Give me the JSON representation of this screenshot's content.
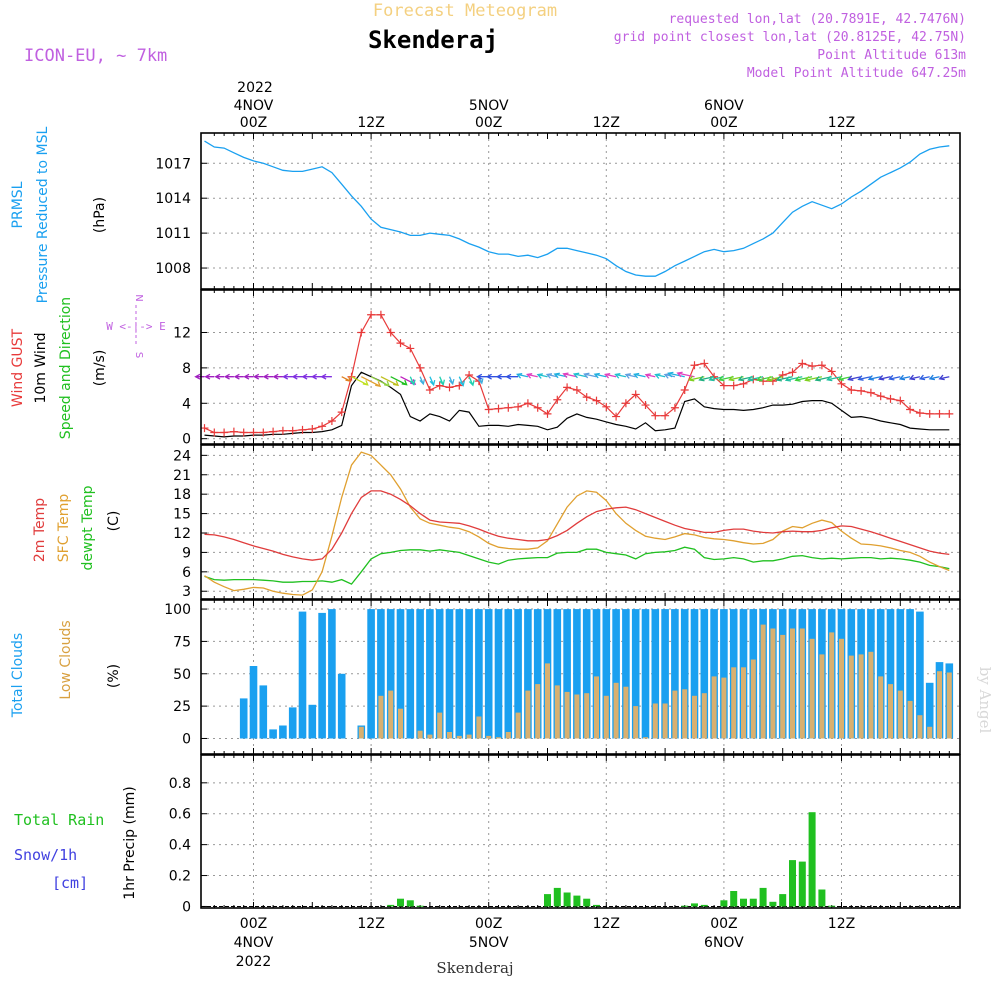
{
  "header": {
    "title": "Forecast Meteogram",
    "location": "Skenderaj",
    "model": "ICON-EU, ~ 7km",
    "requested": "requested lon,lat (20.7891E, 42.7476N)",
    "gridpoint": "grid point closest lon,lat (20.8125E, 42.75N)",
    "point_alt": "Point Altitude 613m",
    "model_alt": "Model Point Altitude 647.25m",
    "credit": "by Angel",
    "footer": "Skenderaj"
  },
  "colors": {
    "pressure": "#1aa0f0",
    "gust": "#e83a3a",
    "wind": "#000000",
    "temp": "#e03c3c",
    "sfc": "#e0a030",
    "dewpt": "#20c020",
    "total_cloud": "#1aa0f0",
    "low_cloud": "#d8b070",
    "rain": "#20c020",
    "snow": "#4040e0",
    "magenta": "#c060e0"
  },
  "x_axis": {
    "top_year": "2022",
    "top": [
      {
        "h": 0,
        "day": "4NOV",
        "hour": "00Z"
      },
      {
        "h": 12,
        "day": "",
        "hour": "12Z"
      },
      {
        "h": 24,
        "day": "5NOV",
        "hour": "00Z"
      },
      {
        "h": 36,
        "day": "",
        "hour": "12Z"
      },
      {
        "h": 48,
        "day": "6NOV",
        "hour": "00Z"
      },
      {
        "h": 60,
        "day": "",
        "hour": "12Z"
      }
    ],
    "bottom": [
      {
        "h": 0,
        "hour": "00Z",
        "day": "4NOV",
        "year": "2022"
      },
      {
        "h": 12,
        "hour": "12Z",
        "day": "",
        "year": ""
      },
      {
        "h": 24,
        "hour": "00Z",
        "day": "5NOV",
        "year": ""
      },
      {
        "h": 36,
        "hour": "12Z",
        "day": "",
        "year": ""
      },
      {
        "h": 48,
        "hour": "00Z",
        "day": "6NOV",
        "year": ""
      },
      {
        "h": 60,
        "hour": "12Z",
        "day": "",
        "year": ""
      }
    ]
  },
  "labels": {
    "p1_a": "PRMSL",
    "p1_b": "Pressure Reduced to MSL",
    "p1_unit": "(hPa)",
    "p2_a": "Wind GUST",
    "p2_b": "10m Wind",
    "p2_c": "Speed and Direction",
    "p2_unit": "(m/s)",
    "compass_n": "N",
    "compass_s": "S",
    "compass_we": "W <-|-> E",
    "p3_a": "2m Temp",
    "p3_b": "SFC Temp",
    "p3_c": "dewpt Temp",
    "p3_unit": "(C)",
    "p4_a": "Total Clouds",
    "p4_b": "Low Clouds",
    "p4_unit": "(%)",
    "p5_a": "Total  Rain",
    "p5_b": "Snow/1h",
    "p5_c": "[cm]",
    "p5_unit": "1hr Precip (mm)"
  },
  "chart_data": [
    {
      "type": "line",
      "name": "pressure",
      "ylim": [
        1006.2,
        1019.6
      ],
      "yticks": [
        1008,
        1011,
        1014,
        1017
      ],
      "x_hours": [
        -5,
        -4,
        -3,
        -2,
        -1,
        0,
        1,
        2,
        3,
        4,
        5,
        6,
        7,
        8,
        9,
        10,
        11,
        12,
        13,
        14,
        15,
        16,
        17,
        18,
        19,
        20,
        21,
        22,
        23,
        24,
        25,
        26,
        27,
        28,
        29,
        30,
        31,
        32,
        33,
        34,
        35,
        36,
        37,
        38,
        39,
        40,
        41,
        42,
        43,
        44,
        45,
        46,
        47,
        48,
        49,
        50,
        51,
        52,
        53,
        54,
        55,
        56,
        57,
        58,
        59,
        60,
        61,
        62,
        63,
        64,
        65,
        66,
        67,
        68,
        69,
        70,
        71
      ],
      "values": [
        1018.9,
        1018.4,
        1018.3,
        1017.9,
        1017.5,
        1017.2,
        1017.0,
        1016.7,
        1016.4,
        1016.3,
        1016.3,
        1016.5,
        1016.7,
        1016.2,
        1015.2,
        1014.2,
        1013.3,
        1012.2,
        1011.5,
        1011.3,
        1011.1,
        1010.8,
        1010.8,
        1011.0,
        1010.9,
        1010.8,
        1010.5,
        1010.1,
        1009.8,
        1009.4,
        1009.2,
        1009.2,
        1009.0,
        1009.1,
        1008.9,
        1009.2,
        1009.7,
        1009.7,
        1009.5,
        1009.3,
        1009.1,
        1008.8,
        1008.2,
        1007.7,
        1007.4,
        1007.3,
        1007.3,
        1007.7,
        1008.2,
        1008.6,
        1009.0,
        1009.4,
        1009.6,
        1009.4,
        1009.5,
        1009.7,
        1010.1,
        1010.5,
        1011.0,
        1011.9,
        1012.8,
        1013.3,
        1013.7,
        1013.4,
        1013.1,
        1013.5,
        1014.1,
        1014.6,
        1015.2,
        1015.8,
        1016.2,
        1016.6,
        1017.1,
        1017.8,
        1018.2,
        1018.4,
        1018.5
      ]
    },
    {
      "type": "line",
      "name": "wind",
      "ylim": [
        -0.6,
        16.8
      ],
      "yticks": [
        0,
        4,
        8,
        12
      ],
      "x_hours": [
        -5,
        -4,
        -3,
        -2,
        -1,
        0,
        1,
        2,
        3,
        4,
        5,
        6,
        7,
        8,
        9,
        10,
        11,
        12,
        13,
        14,
        15,
        16,
        17,
        18,
        19,
        20,
        21,
        22,
        23,
        24,
        25,
        26,
        27,
        28,
        29,
        30,
        31,
        32,
        33,
        34,
        35,
        36,
        37,
        38,
        39,
        40,
        41,
        42,
        43,
        44,
        45,
        46,
        47,
        48,
        49,
        50,
        51,
        52,
        53,
        54,
        55,
        56,
        57,
        58,
        59,
        60,
        61,
        62,
        63,
        64,
        65,
        66,
        67,
        68,
        69,
        70,
        71
      ],
      "gust": [
        1.2,
        0.7,
        0.7,
        0.8,
        0.7,
        0.7,
        0.7,
        0.8,
        0.9,
        0.9,
        1.0,
        1.1,
        1.4,
        2.0,
        3.0,
        7.0,
        12.0,
        14.0,
        14.0,
        12.0,
        10.8,
        10.2,
        8.0,
        5.5,
        6.0,
        5.8,
        6.0,
        7.2,
        6.5,
        3.3,
        3.4,
        3.5,
        3.6,
        4.0,
        3.5,
        2.8,
        4.4,
        5.8,
        5.5,
        4.7,
        4.3,
        3.6,
        2.5,
        4.0,
        5.0,
        3.8,
        2.6,
        2.6,
        3.5,
        5.5,
        8.3,
        8.5,
        7.0,
        6.0,
        6.0,
        6.2,
        6.7,
        6.5,
        6.5,
        7.2,
        7.5,
        8.5,
        8.2,
        8.3,
        7.6,
        6.2,
        5.5,
        5.4,
        5.2,
        4.8,
        4.5,
        4.3,
        3.3,
        2.9,
        2.8,
        2.8,
        2.8
      ],
      "speed": [
        0.4,
        0.3,
        0.2,
        0.3,
        0.3,
        0.4,
        0.4,
        0.5,
        0.5,
        0.6,
        0.7,
        0.7,
        0.8,
        1.0,
        1.5,
        6.0,
        7.5,
        7.0,
        6.5,
        5.8,
        5.0,
        2.5,
        2.0,
        2.8,
        2.5,
        2.0,
        3.2,
        3.0,
        1.4,
        1.5,
        1.5,
        1.4,
        1.6,
        1.5,
        1.4,
        1.0,
        1.3,
        2.3,
        2.8,
        2.4,
        2.2,
        1.9,
        1.6,
        1.4,
        1.1,
        1.8,
        0.9,
        1.0,
        1.2,
        4.2,
        4.5,
        3.6,
        3.4,
        3.3,
        3.3,
        3.2,
        3.3,
        3.5,
        3.8,
        3.8,
        3.9,
        4.2,
        4.3,
        4.3,
        4.0,
        3.2,
        2.4,
        2.5,
        2.3,
        2.0,
        1.8,
        1.6,
        1.2,
        1.1,
        1.0,
        1.0,
        1.0
      ]
    },
    {
      "type": "line",
      "name": "temperature",
      "ylim": [
        1.8,
        25.6
      ],
      "yticks": [
        3,
        6,
        9,
        12,
        15,
        18,
        21,
        24
      ],
      "x_hours": [
        -5,
        -4,
        -3,
        -2,
        -1,
        0,
        1,
        2,
        3,
        4,
        5,
        6,
        7,
        8,
        9,
        10,
        11,
        12,
        13,
        14,
        15,
        16,
        17,
        18,
        19,
        20,
        21,
        22,
        23,
        24,
        25,
        26,
        27,
        28,
        29,
        30,
        31,
        32,
        33,
        34,
        35,
        36,
        37,
        38,
        39,
        40,
        41,
        42,
        43,
        44,
        45,
        46,
        47,
        48,
        49,
        50,
        51,
        52,
        53,
        54,
        55,
        56,
        57,
        58,
        59,
        60,
        61,
        62,
        63,
        64,
        65,
        66,
        67,
        68,
        69,
        70,
        71
      ],
      "temp_2m": [
        11.8,
        11.7,
        11.4,
        11.0,
        10.5,
        10.0,
        9.6,
        9.2,
        8.7,
        8.3,
        8.0,
        7.8,
        8.0,
        9.5,
        12.0,
        15.0,
        17.5,
        18.5,
        18.5,
        18.0,
        17.2,
        16.2,
        15.0,
        14.0,
        13.7,
        13.6,
        13.5,
        13.1,
        12.6,
        12.0,
        11.5,
        11.2,
        11.0,
        10.8,
        10.8,
        11.0,
        11.6,
        12.4,
        13.5,
        14.5,
        15.3,
        15.7,
        15.9,
        16.0,
        15.6,
        15.0,
        14.4,
        13.8,
        13.2,
        12.7,
        12.4,
        12.1,
        12.1,
        12.4,
        12.6,
        12.6,
        12.3,
        12.1,
        12.0,
        12.2,
        12.3,
        12.2,
        12.2,
        12.4,
        12.8,
        13.1,
        13.0,
        12.6,
        12.2,
        11.7,
        11.2,
        10.7,
        10.2,
        9.7,
        9.2,
        8.9,
        8.7
      ],
      "sfc_temp": [
        5.4,
        4.4,
        3.7,
        3.1,
        3.3,
        3.6,
        3.5,
        3.0,
        2.7,
        2.5,
        2.4,
        3.2,
        6.0,
        11.5,
        17.5,
        22.5,
        24.5,
        24.0,
        22.5,
        21.0,
        18.8,
        16.0,
        14.2,
        13.5,
        13.2,
        12.9,
        12.7,
        12.2,
        11.4,
        10.4,
        9.8,
        9.6,
        9.5,
        9.5,
        9.7,
        10.8,
        13.4,
        16.0,
        17.7,
        18.5,
        18.3,
        17.0,
        15.0,
        13.5,
        12.4,
        11.5,
        11.2,
        11.0,
        11.4,
        11.9,
        11.7,
        11.3,
        11.1,
        11.0,
        10.8,
        10.5,
        10.3,
        10.4,
        11.0,
        12.3,
        13.0,
        12.8,
        13.5,
        14.0,
        13.6,
        12.3,
        11.2,
        10.3,
        10.2,
        10.0,
        9.7,
        9.3,
        9.0,
        8.4,
        7.5,
        6.8,
        6.2
      ],
      "dewpt": [
        5.3,
        4.8,
        4.7,
        4.8,
        4.8,
        4.8,
        4.7,
        4.6,
        4.4,
        4.4,
        4.5,
        4.5,
        4.6,
        4.4,
        4.8,
        4.1,
        6.0,
        8.0,
        8.8,
        9.0,
        9.3,
        9.4,
        9.4,
        9.2,
        9.4,
        9.2,
        9.0,
        8.5,
        8.0,
        7.5,
        7.2,
        7.8,
        8.0,
        8.1,
        8.2,
        8.2,
        8.9,
        9.0,
        9.0,
        9.5,
        9.5,
        9.0,
        8.8,
        8.6,
        8.0,
        8.8,
        9.0,
        9.1,
        9.3,
        9.8,
        9.5,
        8.2,
        7.9,
        8.0,
        8.2,
        8.0,
        7.5,
        7.7,
        7.7,
        8.0,
        8.4,
        8.5,
        8.2,
        8.0,
        8.1,
        8.0,
        8.1,
        8.2,
        8.2,
        8.0,
        8.1,
        8.0,
        7.8,
        7.5,
        7.0,
        6.8,
        6.5
      ]
    },
    {
      "type": "bar",
      "name": "clouds",
      "ylim": [
        -12,
        107
      ],
      "yticks": [
        0,
        25,
        50,
        75,
        100
      ],
      "x_hours": [
        -4,
        -3,
        -2,
        -1,
        0,
        1,
        2,
        3,
        4,
        5,
        6,
        7,
        8,
        9,
        10,
        11,
        12,
        13,
        14,
        15,
        16,
        17,
        18,
        19,
        20,
        21,
        22,
        23,
        24,
        25,
        26,
        27,
        28,
        29,
        30,
        31,
        32,
        33,
        34,
        35,
        36,
        37,
        38,
        39,
        40,
        41,
        42,
        43,
        44,
        45,
        46,
        47,
        48,
        49,
        50,
        51,
        52,
        53,
        54,
        55,
        56,
        57,
        58,
        59,
        60,
        61,
        62,
        63,
        64,
        65,
        66,
        67,
        68,
        69,
        70,
        71
      ],
      "total": [
        0,
        0,
        0,
        31,
        56,
        41,
        7,
        10,
        24,
        98,
        26,
        97,
        100,
        50,
        0,
        10,
        100,
        100,
        100,
        100,
        100,
        100,
        100,
        100,
        100,
        100,
        100,
        100,
        100,
        100,
        100,
        100,
        100,
        100,
        100,
        100,
        100,
        100,
        100,
        100,
        100,
        100,
        100,
        100,
        100,
        100,
        100,
        100,
        100,
        100,
        100,
        100,
        100,
        100,
        100,
        100,
        100,
        100,
        100,
        100,
        100,
        100,
        100,
        100,
        100,
        100,
        100,
        100,
        100,
        100,
        100,
        100,
        98,
        43,
        59,
        58
      ],
      "low": [
        0,
        0,
        0,
        0,
        0,
        0,
        0,
        0,
        0,
        0,
        0,
        0,
        0,
        0,
        0,
        9,
        0,
        33,
        37,
        23,
        0,
        6,
        3,
        20,
        5,
        2,
        3,
        17,
        2,
        1,
        5,
        20,
        37,
        42,
        58,
        41,
        36,
        34,
        35,
        48,
        33,
        43,
        40,
        25,
        1,
        27,
        27,
        37,
        38,
        33,
        35,
        48,
        47,
        55,
        55,
        61,
        88,
        85,
        80,
        85,
        85,
        77,
        65,
        82,
        77,
        64,
        65,
        67,
        48,
        42,
        37,
        29,
        18,
        9,
        52,
        51
      ]
    },
    {
      "type": "bar",
      "name": "precip",
      "ylim": [
        -0.01,
        0.98
      ],
      "yticks": [
        0,
        0.2,
        0.4,
        0.6,
        0.8
      ],
      "x_hours": [
        14,
        15,
        16,
        17,
        30,
        31,
        32,
        33,
        34,
        35,
        44,
        45,
        46,
        48,
        49,
        50,
        51,
        52,
        53,
        54,
        55,
        56,
        57,
        58,
        59
      ],
      "rain": [
        0.01,
        0.05,
        0.04,
        0.005,
        0.08,
        0.12,
        0.09,
        0.07,
        0.05,
        0.01,
        0.005,
        0.02,
        0.01,
        0.04,
        0.1,
        0.05,
        0.05,
        0.12,
        0.03,
        0.08,
        0.3,
        0.29,
        0.61,
        0.11,
        0.005
      ]
    }
  ]
}
